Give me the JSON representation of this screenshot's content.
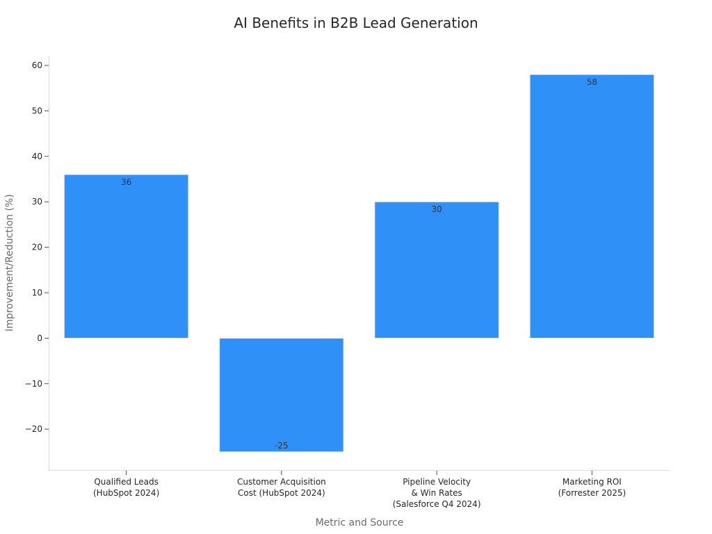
{
  "colors": {
    "bar": "#2f90f8",
    "bar_edge": "#f0f0f0",
    "spine": "#d9d9d9",
    "text": "#262626",
    "axis_title": "#6b6b6b"
  },
  "chart_data": {
    "type": "bar",
    "title": "AI Benefits in B2B Lead Generation",
    "xlabel": "Metric and Source",
    "ylabel": "Improvement/Reduction (%)",
    "categories": [
      [
        "Qualified Leads",
        "(HubSpot 2024)"
      ],
      [
        "Customer Acquisition",
        "Cost (HubSpot 2024)"
      ],
      [
        "Pipeline Velocity",
        "& Win Rates",
        "(Salesforce Q4 2024)"
      ],
      [
        "Marketing ROI",
        "(Forrester 2025)"
      ]
    ],
    "values": [
      36,
      -25,
      30,
      58
    ],
    "data_labels": [
      "36",
      "-25",
      "30",
      "58"
    ],
    "ylim": [
      -29.15,
      62.15
    ],
    "yticks": [
      -20,
      -10,
      0,
      10,
      20,
      30,
      40,
      50,
      60
    ],
    "ytick_labels": [
      "−20",
      "−10",
      "0",
      "10",
      "20",
      "30",
      "40",
      "50",
      "60"
    ],
    "grid": false,
    "legend": "none"
  }
}
